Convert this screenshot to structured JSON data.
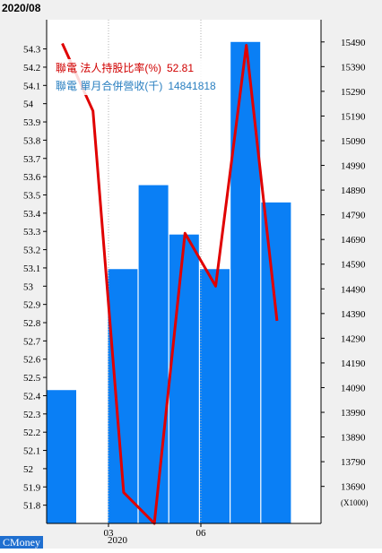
{
  "header": {
    "date_label": "2020/08"
  },
  "watermark": "CMoney",
  "legend": {
    "series1_name": "聯電 法人持股比率(%)",
    "series1_value": "52.81",
    "series2_name": "聯電 單月合併營收(千)",
    "series2_value": "14841818"
  },
  "chart_data": {
    "type": "bar",
    "x_ticks": [
      "03",
      "06"
    ],
    "x_year": "2020",
    "bars": {
      "name": "聯電 單月合併營收(千)",
      "color": "#0a7ff5",
      "values": [
        14080000,
        13540000,
        14570000,
        14910000,
        14710000,
        14570000,
        15490000,
        14840000
      ],
      "ylim": [
        13540000,
        15580000
      ],
      "y_ticks": [
        13690000,
        13790000,
        13890000,
        13990000,
        14090000,
        14190000,
        14290000,
        14390000,
        14490000,
        14590000,
        14690000,
        14790000,
        14890000,
        14990000,
        15090000,
        15190000,
        15290000,
        15390000,
        15490000
      ],
      "y_tick_labels": [
        "13690",
        "13790",
        "13890",
        "13990",
        "14090",
        "14190",
        "14290",
        "14390",
        "14490",
        "14590",
        "14690",
        "14790",
        "14890",
        "14990",
        "15090",
        "15190",
        "15290",
        "15390",
        "15490"
      ],
      "unit_label": "(X1000)"
    },
    "line": {
      "name": "聯電 法人持股比率(%)",
      "color": "#e00000",
      "values": [
        54.33,
        53.96,
        51.87,
        51.7,
        53.29,
        53.0,
        54.32,
        52.81
      ],
      "ylim": [
        51.7,
        54.46
      ],
      "y_ticks": [
        51.8,
        51.9,
        52,
        52.1,
        52.2,
        52.3,
        52.4,
        52.5,
        52.6,
        52.7,
        52.8,
        52.9,
        53,
        53.1,
        53.2,
        53.3,
        53.4,
        53.5,
        53.6,
        53.7,
        53.8,
        53.9,
        54,
        54.1,
        54.2,
        54.3
      ],
      "y_tick_labels": [
        "51.8",
        "51.9",
        "52",
        "52.1",
        "52.2",
        "52.3",
        "52.4",
        "52.5",
        "52.6",
        "52.7",
        "52.8",
        "52.9",
        "53",
        "53.1",
        "53.2",
        "53.3",
        "53.4",
        "53.5",
        "53.6",
        "53.7",
        "53.8",
        "53.9",
        "54",
        "54.1",
        "54.2",
        "54.3"
      ]
    },
    "colors": {
      "plot_background": "#ffffff",
      "outer_background": "#f0f0f0",
      "grid": "#b0b0b0"
    }
  }
}
